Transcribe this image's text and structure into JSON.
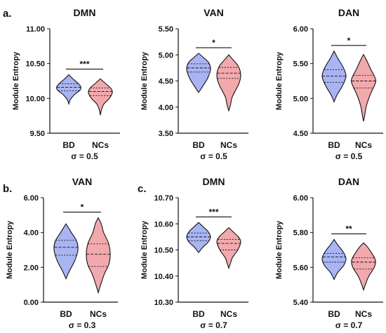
{
  "figure": {
    "row_letters": [
      "a.",
      "b.",
      "c."
    ]
  },
  "chart_data": [
    {
      "type": "violin",
      "title": "DMN",
      "ylabel": "Module Entropy",
      "categories": [
        "BD",
        "NCs"
      ],
      "ylim": [
        9.5,
        11.0
      ],
      "yticks": [
        "9.50",
        "10.00",
        "10.50",
        "11.00"
      ],
      "significance": "***",
      "sigma_label": "σ = 0.5",
      "series": [
        {
          "category": "BD",
          "color": "#a9b4f2",
          "median": 10.16,
          "q1": 10.11,
          "q3": 10.21,
          "profile": [
            [
              9.92,
              0.0
            ],
            [
              9.98,
              0.12
            ],
            [
              10.05,
              0.45
            ],
            [
              10.12,
              0.95
            ],
            [
              10.17,
              1.0
            ],
            [
              10.22,
              0.75
            ],
            [
              10.28,
              0.35
            ],
            [
              10.34,
              0.0
            ]
          ]
        },
        {
          "category": "NCs",
          "color": "#f2a9ad",
          "median": 10.1,
          "q1": 10.04,
          "q3": 10.15,
          "profile": [
            [
              9.76,
              0.0
            ],
            [
              9.84,
              0.1
            ],
            [
              9.92,
              0.3
            ],
            [
              10.0,
              0.75
            ],
            [
              10.08,
              1.0
            ],
            [
              10.14,
              0.9
            ],
            [
              10.22,
              0.4
            ],
            [
              10.28,
              0.0
            ]
          ]
        }
      ]
    },
    {
      "type": "violin",
      "title": "VAN",
      "ylabel": "Module Entropy",
      "categories": [
        "BD",
        "NCs"
      ],
      "ylim": [
        3.5,
        5.5
      ],
      "yticks": [
        "3.50",
        "4.00",
        "4.50",
        "5.00",
        "5.50"
      ],
      "significance": "*",
      "sigma_label": "σ = 0.5",
      "series": [
        {
          "category": "BD",
          "color": "#a9b4f2",
          "median": 4.75,
          "q1": 4.67,
          "q3": 4.83,
          "profile": [
            [
              4.28,
              0.0
            ],
            [
              4.4,
              0.35
            ],
            [
              4.55,
              0.75
            ],
            [
              4.72,
              1.0
            ],
            [
              4.85,
              0.85
            ],
            [
              4.95,
              0.4
            ],
            [
              5.03,
              0.0
            ]
          ]
        },
        {
          "category": "NCs",
          "color": "#f2a9ad",
          "median": 4.65,
          "q1": 4.55,
          "q3": 4.76,
          "profile": [
            [
              3.93,
              0.0
            ],
            [
              4.05,
              0.15
            ],
            [
              4.2,
              0.3
            ],
            [
              4.45,
              0.85
            ],
            [
              4.62,
              1.0
            ],
            [
              4.78,
              0.8
            ],
            [
              4.92,
              0.3
            ],
            [
              5.0,
              0.0
            ]
          ]
        }
      ]
    },
    {
      "type": "violin",
      "title": "DAN",
      "ylabel": "Module Entropy",
      "categories": [
        "BD",
        "NCs"
      ],
      "ylim": [
        4.5,
        6.0
      ],
      "yticks": [
        "4.50",
        "5.00",
        "5.50",
        "6.00"
      ],
      "significance": "*",
      "sigma_label": "σ = 0.5",
      "series": [
        {
          "category": "BD",
          "color": "#a9b4f2",
          "median": 5.32,
          "q1": 5.23,
          "q3": 5.41,
          "profile": [
            [
              4.95,
              0.0
            ],
            [
              5.05,
              0.25
            ],
            [
              5.18,
              0.7
            ],
            [
              5.32,
              1.0
            ],
            [
              5.45,
              0.75
            ],
            [
              5.58,
              0.3
            ],
            [
              5.68,
              0.0
            ]
          ]
        },
        {
          "category": "NCs",
          "color": "#f2a9ad",
          "median": 5.25,
          "q1": 5.15,
          "q3": 5.33,
          "profile": [
            [
              4.67,
              0.0
            ],
            [
              4.78,
              0.12
            ],
            [
              4.9,
              0.25
            ],
            [
              5.05,
              0.55
            ],
            [
              5.2,
              0.95
            ],
            [
              5.28,
              1.0
            ],
            [
              5.42,
              0.6
            ],
            [
              5.55,
              0.25
            ],
            [
              5.63,
              0.0
            ]
          ]
        }
      ]
    },
    {
      "type": "violin",
      "title": "VAN",
      "ylabel": "Module Entropy",
      "categories": [
        "BD",
        "NCs"
      ],
      "ylim": [
        0.0,
        6.0
      ],
      "yticks": [
        "0.00",
        "2.00",
        "4.00",
        "6.00"
      ],
      "significance": "*",
      "sigma_label": "σ = 0.3",
      "series": [
        {
          "category": "BD",
          "color": "#a9b4f2",
          "median": 3.15,
          "q1": 2.7,
          "q3": 3.55,
          "profile": [
            [
              1.35,
              0.0
            ],
            [
              1.8,
              0.3
            ],
            [
              2.4,
              0.75
            ],
            [
              3.0,
              1.0
            ],
            [
              3.5,
              0.9
            ],
            [
              4.0,
              0.45
            ],
            [
              4.5,
              0.0
            ]
          ]
        },
        {
          "category": "NCs",
          "color": "#f2a9ad",
          "median": 2.75,
          "q1": 2.05,
          "q3": 3.35,
          "profile": [
            [
              0.55,
              0.0
            ],
            [
              1.0,
              0.2
            ],
            [
              1.6,
              0.5
            ],
            [
              2.2,
              0.9
            ],
            [
              2.8,
              1.0
            ],
            [
              3.4,
              0.85
            ],
            [
              4.0,
              0.45
            ],
            [
              4.5,
              0.25
            ],
            [
              4.85,
              0.0
            ]
          ]
        }
      ]
    },
    {
      "type": "violin",
      "title": "DMN",
      "ylabel": "Module Entropy",
      "categories": [
        "BD",
        "NCs"
      ],
      "ylim": [
        10.3,
        10.7
      ],
      "yticks": [
        "10.30",
        "10.40",
        "10.50",
        "10.60",
        "10.70"
      ],
      "significance": "***",
      "sigma_label": "σ = 0.7",
      "series": [
        {
          "category": "BD",
          "color": "#a9b4f2",
          "median": 10.55,
          "q1": 10.535,
          "q3": 10.565,
          "profile": [
            [
              10.49,
              0.0
            ],
            [
              10.51,
              0.35
            ],
            [
              10.53,
              0.8
            ],
            [
              10.55,
              1.0
            ],
            [
              10.57,
              0.8
            ],
            [
              10.59,
              0.35
            ],
            [
              10.605,
              0.0
            ]
          ]
        },
        {
          "category": "NCs",
          "color": "#f2a9ad",
          "median": 10.525,
          "q1": 10.5,
          "q3": 10.54,
          "profile": [
            [
              10.43,
              0.0
            ],
            [
              10.45,
              0.15
            ],
            [
              10.47,
              0.3
            ],
            [
              10.5,
              0.75
            ],
            [
              10.53,
              1.0
            ],
            [
              10.55,
              0.8
            ],
            [
              10.57,
              0.35
            ],
            [
              10.585,
              0.0
            ]
          ]
        }
      ]
    },
    {
      "type": "violin",
      "title": "DAN",
      "ylabel": "Module Entropy",
      "categories": [
        "BD",
        "NCs"
      ],
      "ylim": [
        5.4,
        6.0
      ],
      "yticks": [
        "5.40",
        "5.60",
        "5.80",
        "6.00"
      ],
      "significance": "**",
      "sigma_label": "σ = 0.7",
      "series": [
        {
          "category": "BD",
          "color": "#a9b4f2",
          "median": 5.66,
          "q1": 5.63,
          "q3": 5.68,
          "profile": [
            [
              5.53,
              0.0
            ],
            [
              5.57,
              0.3
            ],
            [
              5.61,
              0.8
            ],
            [
              5.65,
              1.0
            ],
            [
              5.69,
              0.75
            ],
            [
              5.73,
              0.3
            ],
            [
              5.76,
              0.0
            ]
          ]
        },
        {
          "category": "NCs",
          "color": "#f2a9ad",
          "median": 5.63,
          "q1": 5.59,
          "q3": 5.655,
          "profile": [
            [
              5.47,
              0.0
            ],
            [
              5.51,
              0.2
            ],
            [
              5.55,
              0.45
            ],
            [
              5.6,
              0.9
            ],
            [
              5.64,
              1.0
            ],
            [
              5.68,
              0.7
            ],
            [
              5.72,
              0.3
            ],
            [
              5.74,
              0.0
            ]
          ]
        }
      ]
    }
  ]
}
